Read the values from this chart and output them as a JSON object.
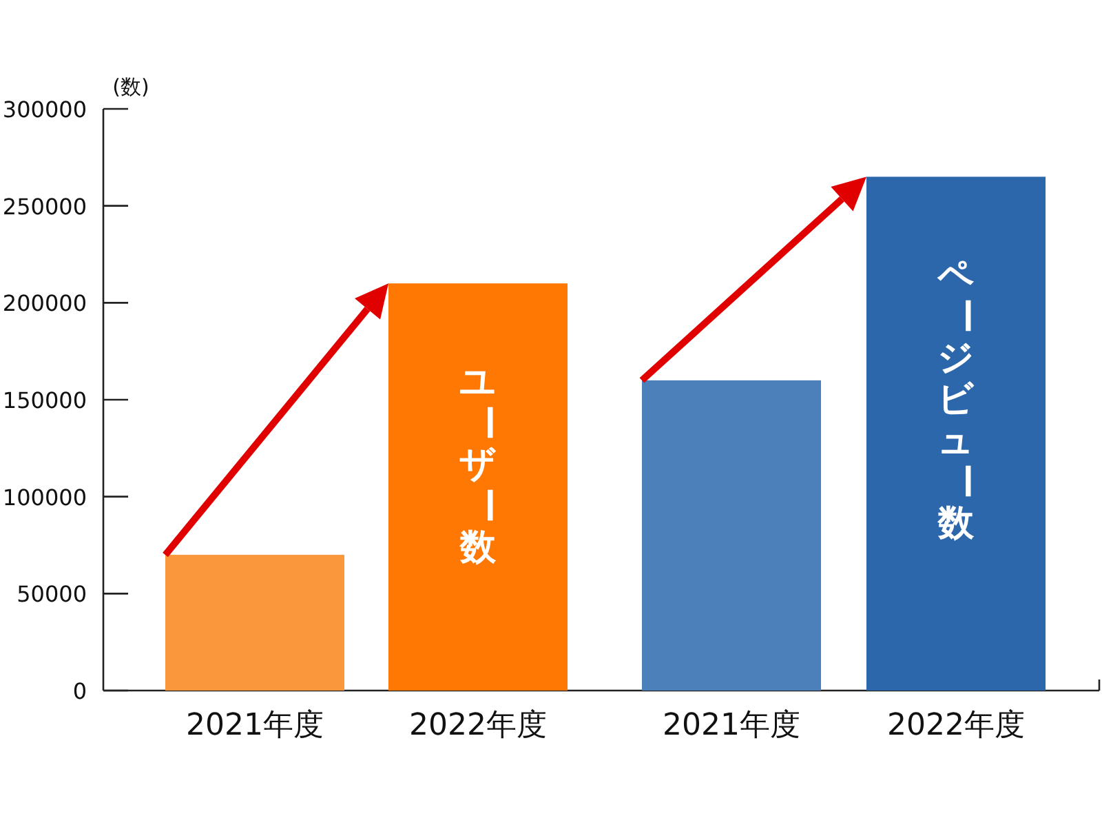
{
  "chart_data": {
    "type": "bar",
    "ylabel": "(数)",
    "categories": [
      "2021年度",
      "2022年度",
      "2021年度",
      "2022年度"
    ],
    "series": [
      {
        "name": "ユーザー数",
        "colors": [
          "#fa963c",
          "#ff7804",
          null,
          null
        ],
        "values": [
          70000,
          210000,
          null,
          null
        ]
      },
      {
        "name": "ページビュー数",
        "colors": [
          null,
          null,
          "#4c80ba",
          "#2c66ab"
        ],
        "values": [
          null,
          null,
          160000,
          265000
        ]
      }
    ],
    "ylim": [
      0,
      300000
    ],
    "yticks": [
      0,
      50000,
      100000,
      150000,
      200000,
      250000,
      300000
    ]
  }
}
